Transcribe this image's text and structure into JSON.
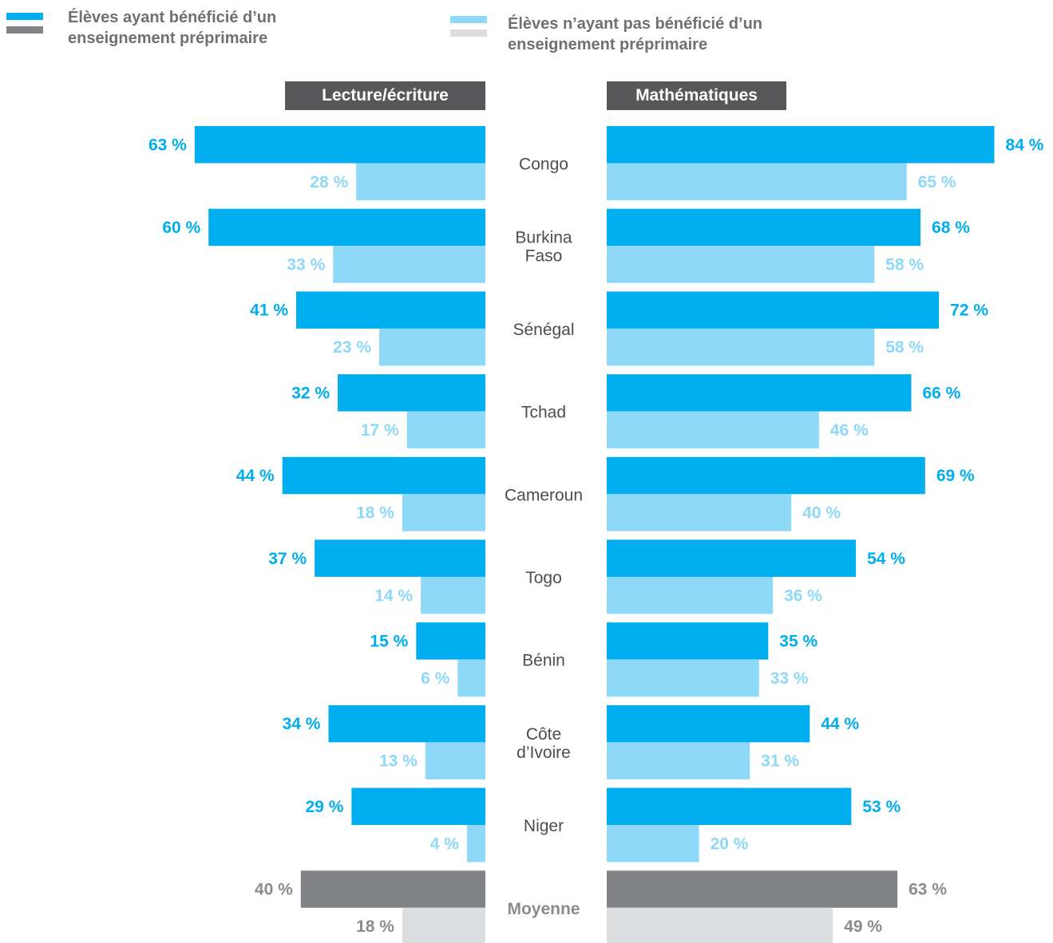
{
  "legend": {
    "items": [
      {
        "label": "Élèves ayant bénéficié d’un\nenseignement préprimaire",
        "colors": [
          "#00aeef",
          "#808285"
        ]
      },
      {
        "label": "Élèves n’ayant pas bénéficié d’un\nenseignement préprimaire",
        "colors": [
          "#8ed8f8",
          "#dcdddf"
        ]
      }
    ]
  },
  "colors": {
    "with_preprimary": "#00aeef",
    "without_preprimary": "#8ed8f8",
    "average_with": "#808285",
    "average_without": "#dcdddf",
    "with_label": "#00aeef",
    "without_label": "#8ed8f8",
    "average_label": "#8a8b8e",
    "country_label": "#4d4d4f"
  },
  "chart_data": {
    "type": "bar",
    "orientation": "horizontal",
    "layout": "butterfly",
    "categories": [
      "Congo",
      "Burkina\nFaso",
      "Sénégal",
      "Tchad",
      "Cameroun",
      "Togo",
      "Bénin",
      "Côte\nd’Ivoire",
      "Niger",
      "Moyenne"
    ],
    "panels": [
      {
        "title": "Lecture/écriture",
        "direction": "left",
        "series": [
          {
            "name": "Élèves ayant bénéficié d’un enseignement préprimaire",
            "values": [
              63,
              60,
              41,
              32,
              44,
              37,
              15,
              34,
              29,
              40
            ]
          },
          {
            "name": "Élèves n’ayant pas bénéficié d’un enseignement préprimaire",
            "values": [
              28,
              33,
              23,
              17,
              18,
              14,
              6,
              13,
              4,
              18
            ]
          }
        ]
      },
      {
        "title": "Mathématiques",
        "direction": "right",
        "series": [
          {
            "name": "Élèves ayant bénéficié d’un enseignement préprimaire",
            "values": [
              84,
              68,
              72,
              66,
              69,
              54,
              35,
              44,
              53,
              63
            ]
          },
          {
            "name": "Élèves n’ayant pas bénéficié d’un enseignement préprimaire",
            "values": [
              65,
              58,
              58,
              46,
              40,
              36,
              33,
              31,
              20,
              49
            ]
          }
        ]
      }
    ],
    "value_suffix": " %",
    "xlim": [
      0,
      84
    ],
    "highlight_category": "Moyenne"
  }
}
